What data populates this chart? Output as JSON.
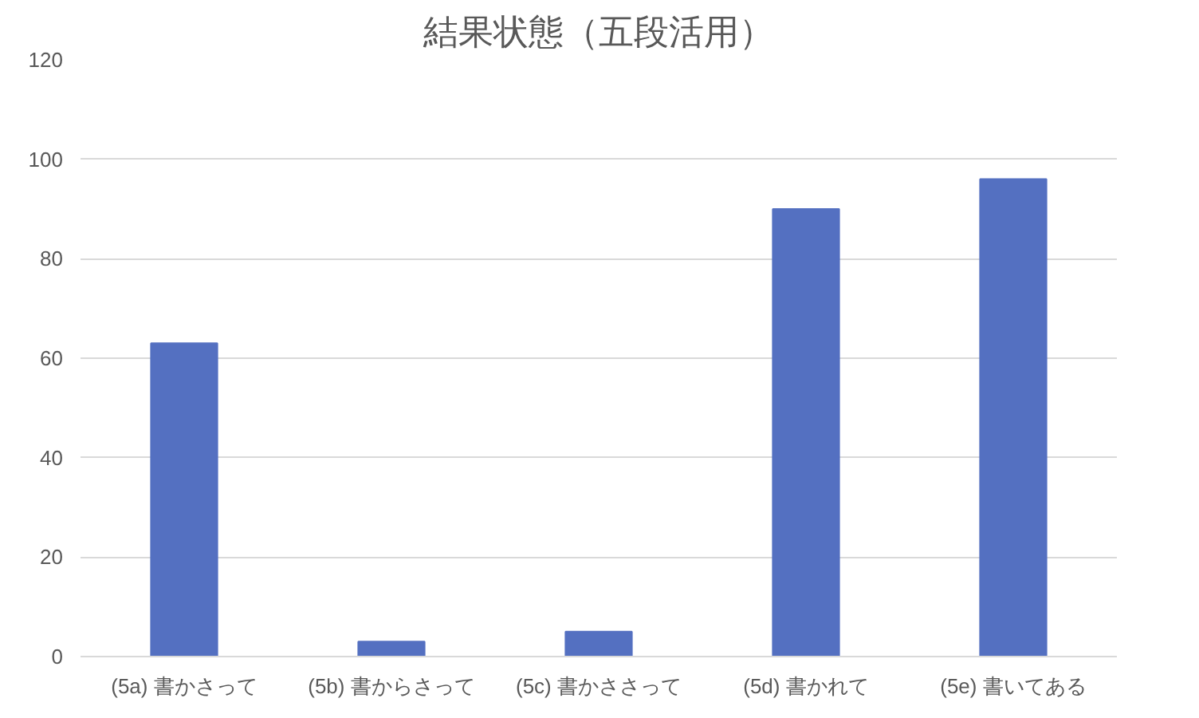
{
  "chart_data": {
    "type": "bar",
    "title": "結果状態（五段活用）",
    "categories": [
      "(5a) 書かさって",
      "(5b) 書からさって",
      "(5c) 書かささって",
      "(5d) 書かれて",
      "(5e) 書いてある"
    ],
    "values": [
      63,
      3,
      5,
      90,
      96
    ],
    "color": "#5470c1",
    "ylim": [
      0,
      120
    ],
    "yticks": [
      0,
      20,
      40,
      60,
      80,
      100,
      120
    ],
    "grid": "y"
  }
}
